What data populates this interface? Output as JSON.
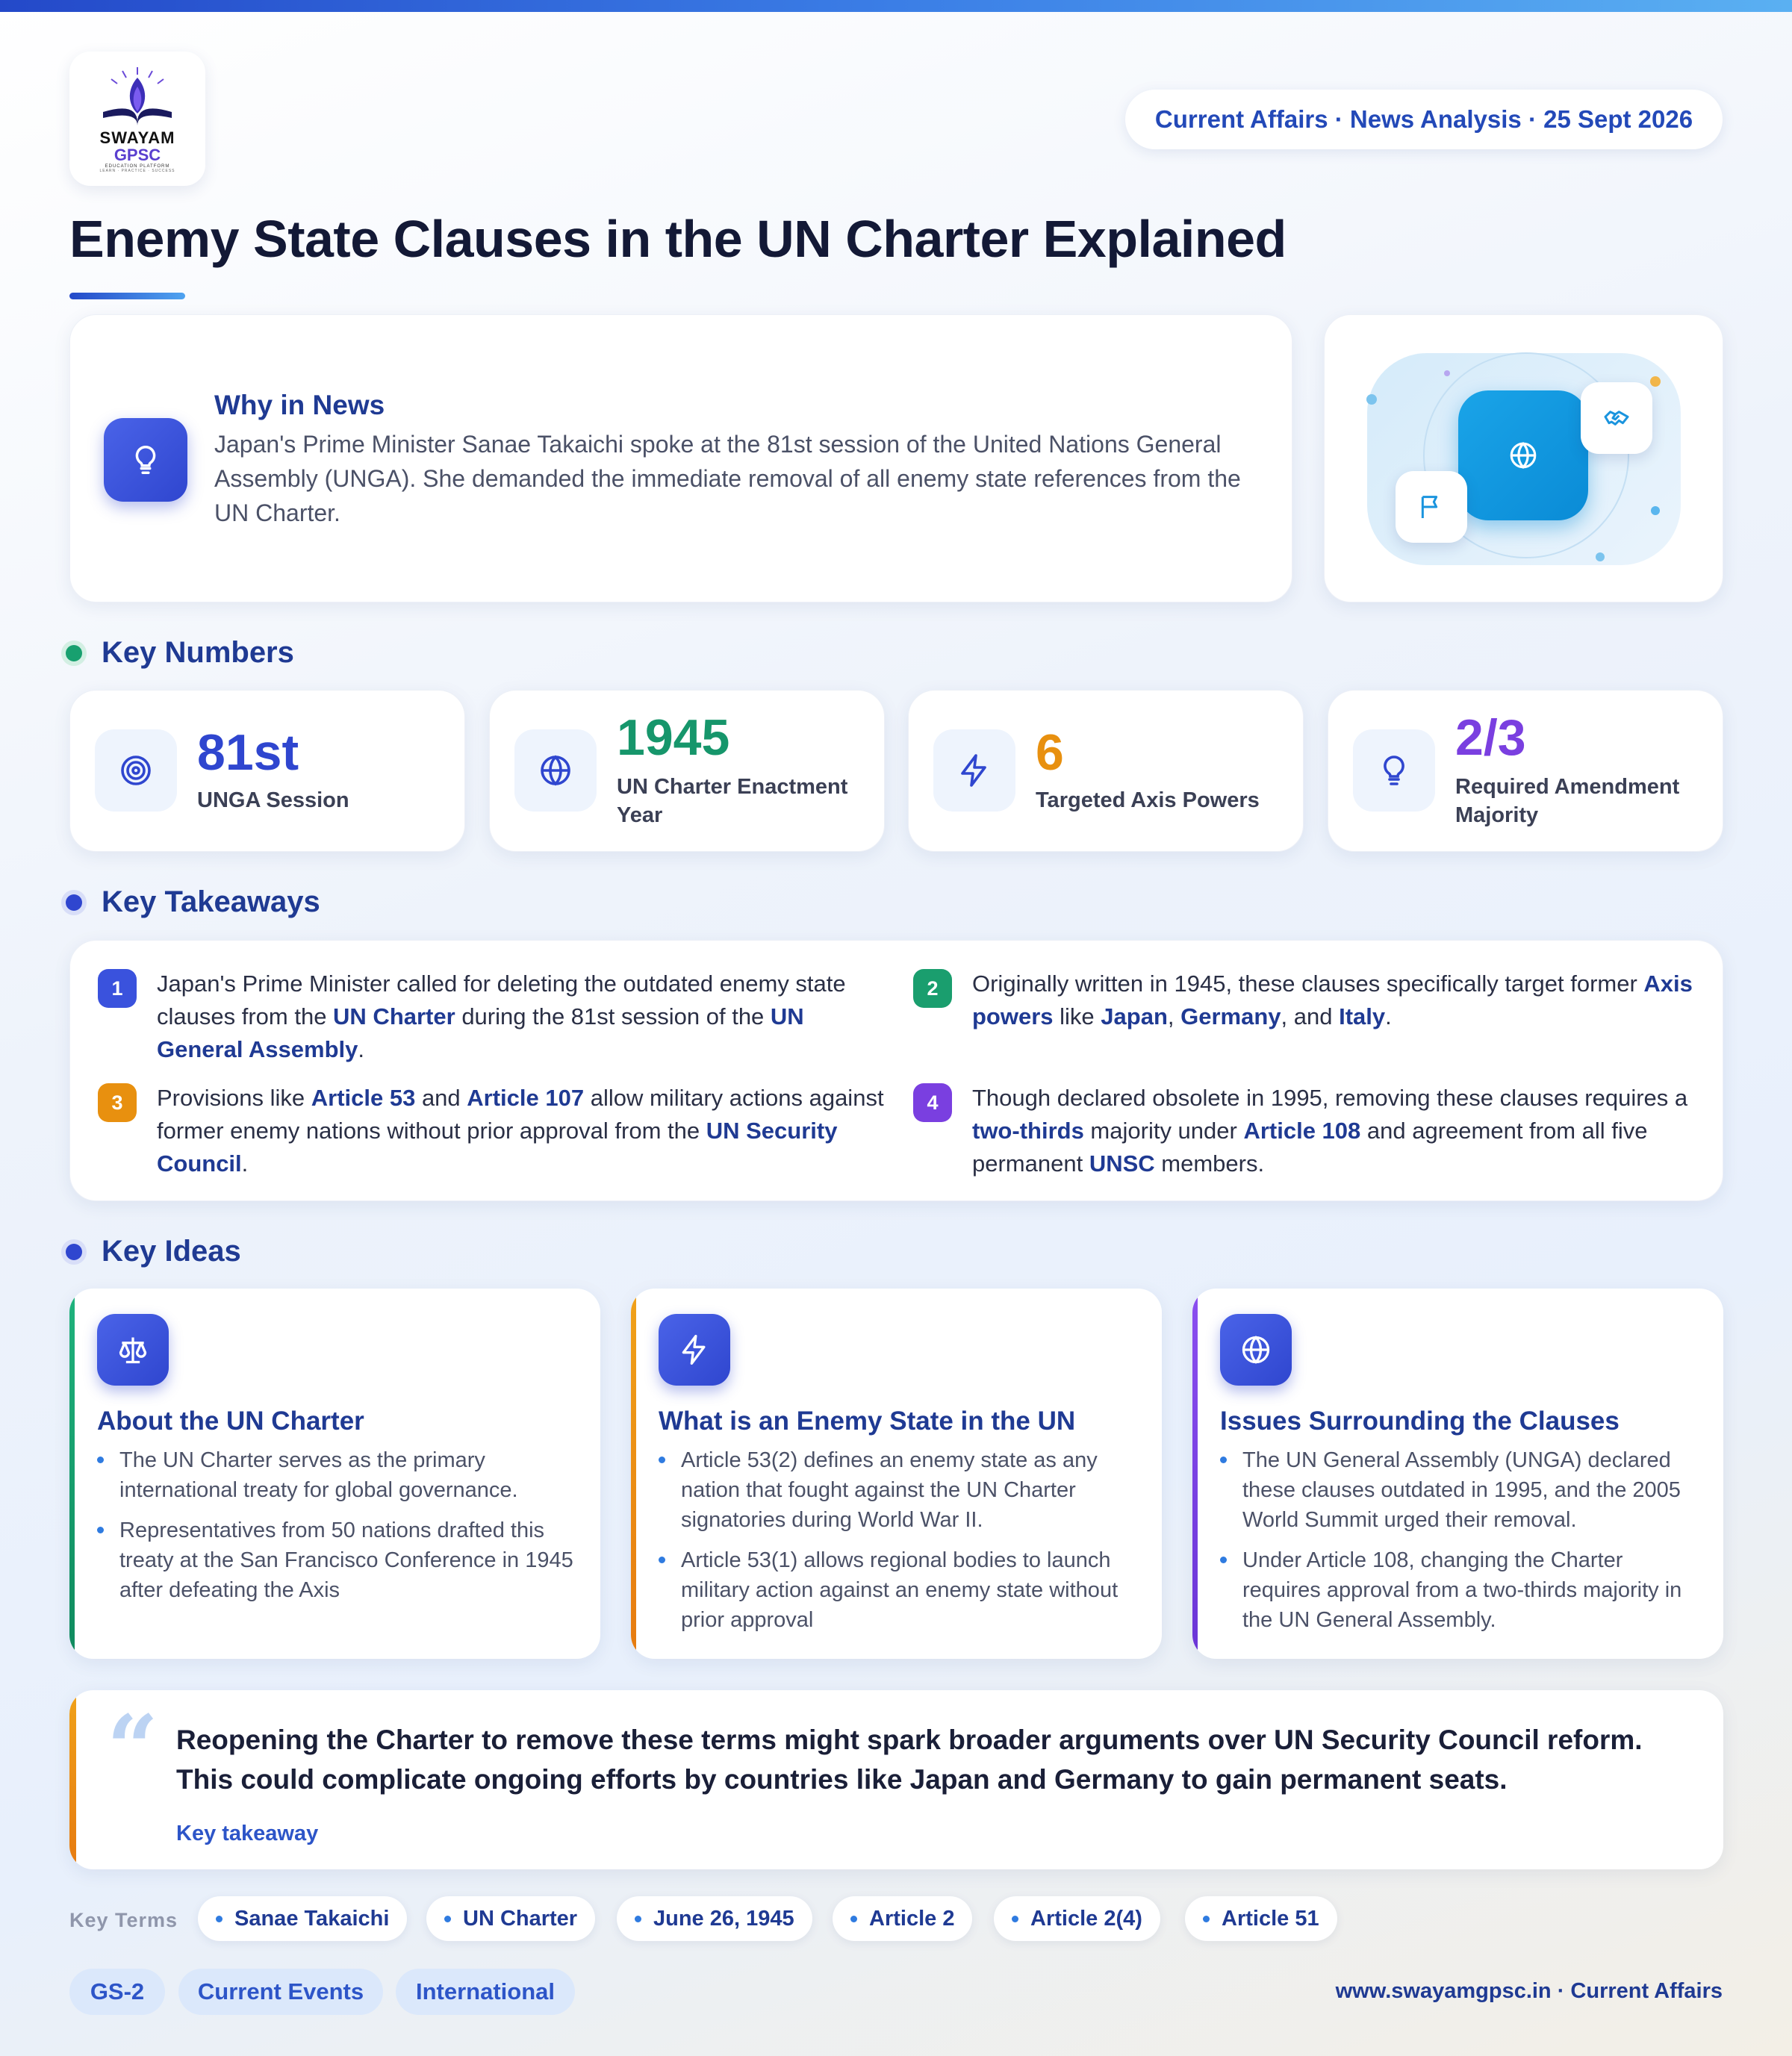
{
  "logo": {
    "line1": "SWAYAM",
    "line2": "GPSC",
    "line3": "EDUCATION PLATFORM",
    "line4": "LEARN · PRACTICE · SUCCESS"
  },
  "header": {
    "badge": "Current Affairs · News Analysis · 25 Sept 2026",
    "title": "Enemy State Clauses in the UN Charter Explained"
  },
  "why": {
    "heading": "Why in News",
    "text": "Japan's Prime Minister Sanae Takaichi spoke at the 81st session of the United Nations General Assembly (UNGA). She demanded the immediate removal of all enemy state references from the UN Charter."
  },
  "sections": {
    "numbers": "Key Numbers",
    "takeaways": "Key Takeaways",
    "ideas": "Key Ideas"
  },
  "numbers": [
    {
      "value": "81st",
      "label": "UNGA Session",
      "icon": "target-icon",
      "color": "#2f46cf"
    },
    {
      "value": "1945",
      "label": "UN Charter Enactment Year",
      "icon": "globe-icon",
      "color": "#16966b"
    },
    {
      "value": "6",
      "label": "Targeted Axis Powers",
      "icon": "lightning-icon",
      "color": "#e8900f"
    },
    {
      "value": "2/3",
      "label": "Required Amendment Majority",
      "icon": "lightbulb-icon",
      "color": "#7a3fe0"
    }
  ],
  "takeaways": [
    {
      "n": "1",
      "color": "#3a52dd",
      "parts": [
        "Japan's Prime Minister called for deleting the outdated enemy state clauses from the ",
        "UN Charter",
        " during the 81st session of the ",
        "UN General Assembly",
        "."
      ]
    },
    {
      "n": "2",
      "color": "#1a9e6e",
      "parts": [
        "Originally written in 1945, these clauses specifically target former ",
        "Axis powers",
        " like ",
        "Japan",
        ", ",
        "Germany",
        ", and ",
        "Italy",
        "."
      ]
    },
    {
      "n": "3",
      "color": "#e8900f",
      "parts": [
        "Provisions like ",
        "Article 53",
        " and ",
        "Article 107",
        " allow military actions against former enemy nations without prior approval from the ",
        "UN Security Council",
        "."
      ]
    },
    {
      "n": "4",
      "color": "#7a3fe0",
      "parts": [
        "Though declared obsolete in 1995, removing these clauses requires a ",
        "two-thirds",
        " majority under ",
        "Article 108",
        " and agreement from all five permanent ",
        "UNSC",
        " members."
      ]
    }
  ],
  "ideas": [
    {
      "title": "About the UN Charter",
      "icon": "scales-icon",
      "accent": "#16966b",
      "bullets": [
        "The UN Charter serves as the primary international treaty for global governance.",
        "Representatives from 50 nations drafted this treaty at the San Francisco Conference in 1945 after defeating the Axis"
      ]
    },
    {
      "title": "What is an Enemy State in the UN",
      "icon": "lightning-icon",
      "accent": "#e8900f",
      "bullets": [
        "Article 53(2) defines an enemy state as any nation that fought against the UN Charter signatories during World War II.",
        "Article 53(1) allows regional bodies to launch military action against an enemy state without prior approval"
      ]
    },
    {
      "title": "Issues Surrounding the Clauses",
      "icon": "globe-icon",
      "accent": "#7a3fe0",
      "bullets": [
        "The UN General Assembly (UNGA) declared these clauses outdated in 1995, and the 2005 World Summit urged their removal.",
        "Under Article 108, changing the Charter requires approval from a two-thirds majority in the UN General Assembly."
      ]
    }
  ],
  "quote": {
    "mark": "“",
    "text": "Reopening the Charter to remove these terms might spark broader arguments over UN Security Council reform. This could complicate ongoing efforts by countries like Japan and Germany to gain permanent seats.",
    "label": "Key takeaway"
  },
  "terms": {
    "label": "Key Terms",
    "items": [
      "Sanae Takaichi",
      "UN Charter",
      "June 26, 1945",
      "Article 2",
      "Article 2(4)",
      "Article 51"
    ]
  },
  "tags": [
    "GS-2",
    "Current Events",
    "International"
  ],
  "footer": "www.swayamgpsc.in · Current Affairs"
}
